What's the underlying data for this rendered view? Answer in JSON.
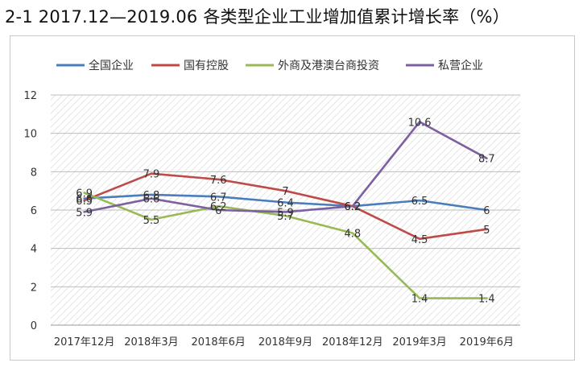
{
  "page": {
    "title": "2-1   2017.12—2019.06 各类型企业工业增加值累计增长率（%）"
  },
  "chart_data": {
    "type": "line",
    "title": "2017.12—2019.06 各类型企业工业增加值累计增长率（%）",
    "xlabel": "",
    "ylabel": "",
    "ylim": [
      0,
      12
    ],
    "yticks": [
      0,
      2,
      4,
      6,
      8,
      10,
      12
    ],
    "grid": true,
    "legend_position": "top",
    "categories": [
      "2017年12月",
      "2018年3月",
      "2018年6月",
      "2018年9月",
      "2018年12月",
      "2019年3月",
      "2019年6月"
    ],
    "series": [
      {
        "name": "全国企业",
        "color": "#4a7ebb",
        "values": [
          6.6,
          6.8,
          6.7,
          6.4,
          6.2,
          6.5,
          6.0
        ],
        "labels": [
          "6.6",
          "6.8",
          "6.7",
          "6.4",
          "6.2",
          "6.5",
          "6"
        ]
      },
      {
        "name": "国有控股",
        "color": "#be4b48",
        "values": [
          6.5,
          7.9,
          7.6,
          7.0,
          6.2,
          4.5,
          5.0
        ],
        "labels": [
          "6.5",
          "7.9",
          "7.6",
          "7",
          "6.2",
          "4.5",
          "5"
        ]
      },
      {
        "name": "外商及港澳台商投资",
        "color": "#98b954",
        "values": [
          6.9,
          5.5,
          6.2,
          5.7,
          4.8,
          1.4,
          1.4
        ],
        "labels": [
          "6.9",
          "5.5",
          "6.2",
          "5.7",
          "4.8",
          "1.4",
          "1.4"
        ]
      },
      {
        "name": "私营企业",
        "color": "#7d60a0",
        "values": [
          5.9,
          6.6,
          6.0,
          5.9,
          6.2,
          10.6,
          8.7
        ],
        "labels": [
          "5.9",
          "6.6",
          "6",
          "5.9",
          "6.2",
          "10.6",
          "8.7"
        ]
      }
    ]
  }
}
